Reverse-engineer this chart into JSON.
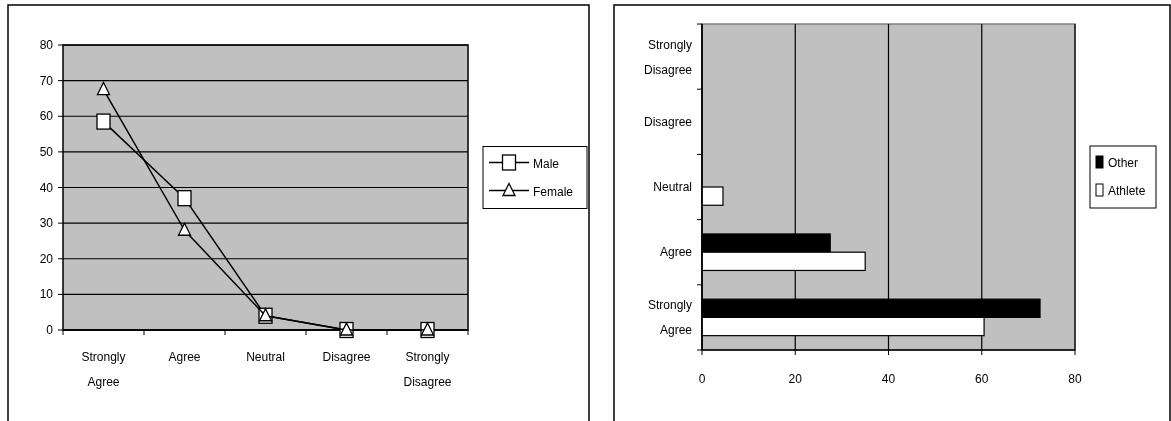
{
  "chart_data": [
    {
      "type": "line",
      "categories": [
        "Strongly Agree",
        "Agree",
        "Neutral",
        "Disagree",
        "Strongly Disagree"
      ],
      "series": [
        {
          "name": "Male",
          "color": "#000000",
          "marker": "square",
          "values": [
            58.5,
            37,
            4,
            0,
            0
          ]
        },
        {
          "name": "Female",
          "color": "#000000",
          "marker": "triangle",
          "values": [
            67.5,
            28,
            4,
            0,
            0
          ]
        }
      ],
      "ylim": [
        0,
        80
      ],
      "yticks": [
        0,
        10,
        20,
        30,
        40,
        50,
        60,
        70,
        80
      ],
      "grid": "y",
      "legend": "right"
    },
    {
      "type": "bar",
      "orientation": "horizontal",
      "categories": [
        "Strongly Disagree",
        "Disagree",
        "Neutral",
        "Agree",
        "Strongly Agree"
      ],
      "series": [
        {
          "name": "Other",
          "color": "#000000",
          "values": [
            0,
            0,
            0,
            27.5,
            72.5
          ]
        },
        {
          "name": "Athlete",
          "color": "#ffffff",
          "values": [
            0,
            0,
            4.5,
            35,
            60.5
          ]
        }
      ],
      "xlim": [
        0,
        80
      ],
      "xticks": [
        0,
        20,
        40,
        60,
        80
      ],
      "grid": "x",
      "legend": "right"
    }
  ]
}
